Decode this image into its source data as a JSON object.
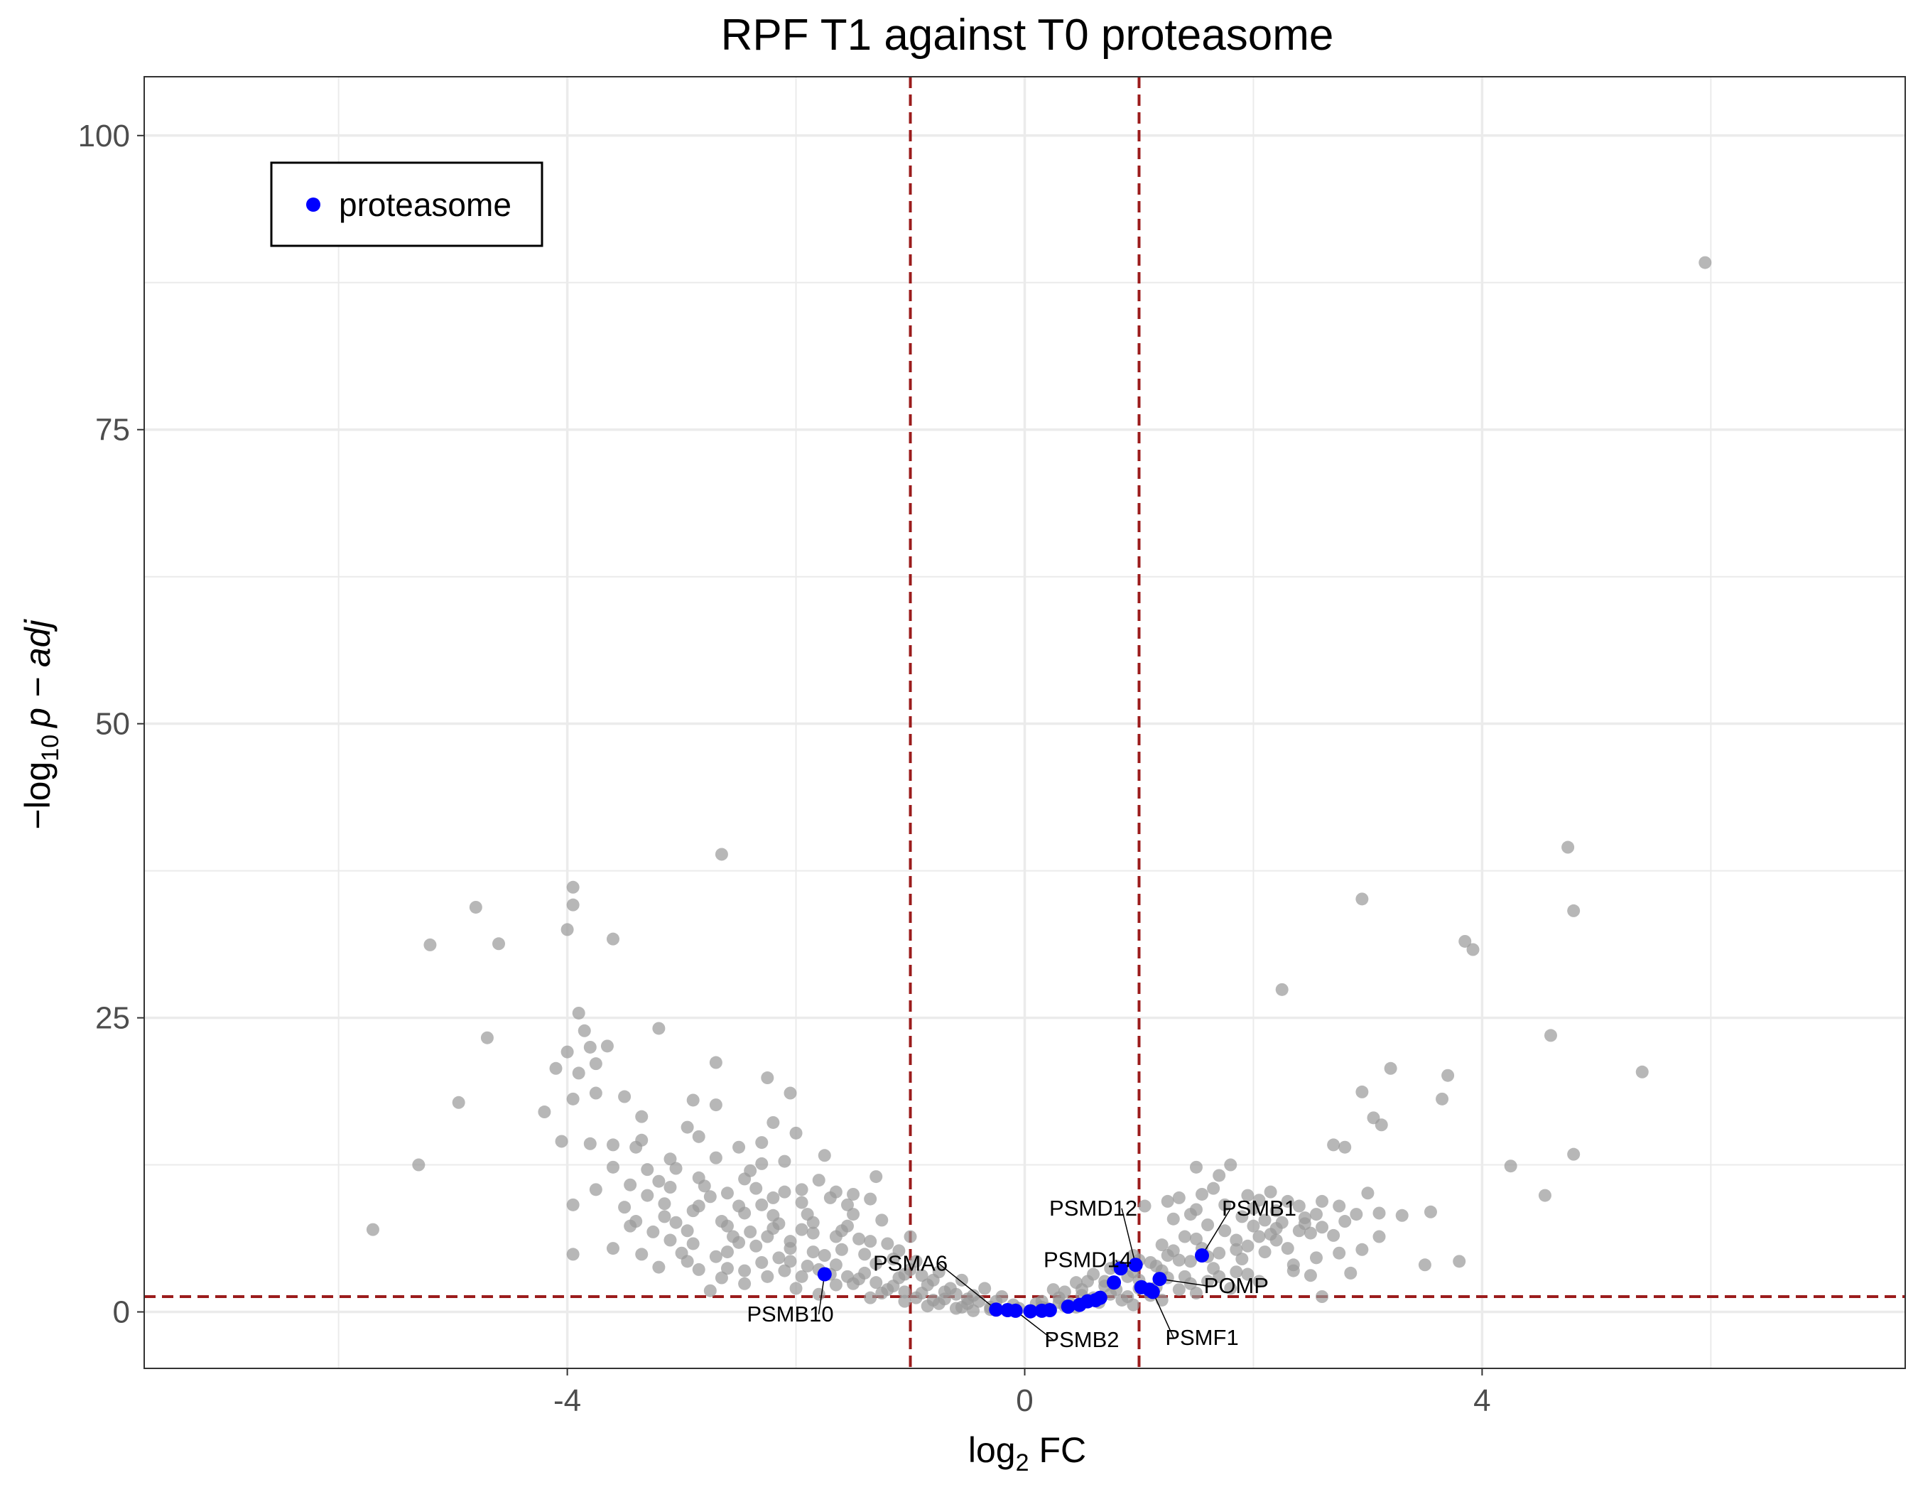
{
  "chart_data": {
    "type": "scatter",
    "title": "RPF T1 against T0 proteasome",
    "xlabel": {
      "main": "log",
      "sub": "2",
      "rest": " FC"
    },
    "ylabel": {
      "prefix": "−log",
      "sub": "10",
      "rest": "p − adj"
    },
    "xlim": [
      -7.7,
      7.7
    ],
    "ylim": [
      -4.8,
      105
    ],
    "x_ticks": [
      -4,
      0,
      4
    ],
    "x_tick_labels": [
      "-4",
      "0",
      "4"
    ],
    "y_ticks": [
      0,
      25,
      50,
      75,
      100
    ],
    "y_tick_labels": [
      "0",
      "25",
      "50",
      "75",
      "100"
    ],
    "grid": true,
    "legend": {
      "position": "top-left",
      "entries": [
        {
          "name": "proteasome",
          "color": "#0000ff"
        }
      ]
    },
    "thresholds": {
      "fc_lines": [
        -1,
        1
      ],
      "padj_line": 1.3,
      "color": "#9b1c1c"
    },
    "colors": {
      "background_points": "#999999",
      "highlight_points": "#0000ff"
    },
    "background_points": [
      [
        5.95,
        89.2
      ],
      [
        4.75,
        39.5
      ],
      [
        -2.65,
        38.9
      ],
      [
        -3.95,
        36.1
      ],
      [
        -3.95,
        34.6
      ],
      [
        -4.8,
        34.4
      ],
      [
        2.95,
        35.1
      ],
      [
        4.8,
        34.1
      ],
      [
        -4.0,
        32.5
      ],
      [
        -3.6,
        31.7
      ],
      [
        -5.2,
        31.2
      ],
      [
        -4.6,
        31.3
      ],
      [
        3.85,
        31.5
      ],
      [
        3.92,
        30.8
      ],
      [
        2.25,
        27.4
      ],
      [
        -3.9,
        25.4
      ],
      [
        -3.85,
        23.9
      ],
      [
        -3.8,
        22.5
      ],
      [
        -3.65,
        22.6
      ],
      [
        -4.7,
        23.3
      ],
      [
        -3.2,
        24.1
      ],
      [
        4.6,
        23.5
      ],
      [
        -4.0,
        22.1
      ],
      [
        -3.75,
        21.1
      ],
      [
        -2.7,
        21.2
      ],
      [
        -4.1,
        20.7
      ],
      [
        -3.9,
        20.3
      ],
      [
        5.4,
        20.4
      ],
      [
        3.7,
        20.1
      ],
      [
        3.2,
        20.7
      ],
      [
        -2.25,
        19.9
      ],
      [
        -3.75,
        18.6
      ],
      [
        -3.5,
        18.3
      ],
      [
        -3.95,
        18.1
      ],
      [
        -4.95,
        17.8
      ],
      [
        -2.05,
        18.6
      ],
      [
        2.95,
        18.7
      ],
      [
        3.65,
        18.1
      ],
      [
        -2.9,
        18.0
      ],
      [
        -2.7,
        17.6
      ],
      [
        -4.2,
        17.0
      ],
      [
        -3.35,
        16.6
      ],
      [
        3.05,
        16.5
      ],
      [
        3.12,
        15.9
      ],
      [
        -2.2,
        16.1
      ],
      [
        -2.95,
        15.7
      ],
      [
        -4.05,
        14.5
      ],
      [
        -3.6,
        14.2
      ],
      [
        -3.4,
        14.0
      ],
      [
        -2.5,
        14.0
      ],
      [
        2.7,
        14.2
      ],
      [
        2.8,
        14.0
      ],
      [
        -5.3,
        12.5
      ],
      [
        4.25,
        12.4
      ],
      [
        4.8,
        13.4
      ],
      [
        -3.1,
        13.0
      ],
      [
        -1.75,
        13.3
      ],
      [
        -3.3,
        12.1
      ],
      [
        -3.2,
        11.1
      ],
      [
        -2.4,
        12.0
      ],
      [
        -1.3,
        11.5
      ],
      [
        1.5,
        12.3
      ],
      [
        1.8,
        12.5
      ],
      [
        1.7,
        11.6
      ],
      [
        -3.45,
        10.8
      ],
      [
        -2.8,
        10.7
      ],
      [
        -2.1,
        10.2
      ],
      [
        -1.65,
        10.2
      ],
      [
        -1.5,
        10.0
      ],
      [
        -1.35,
        9.6
      ],
      [
        4.55,
        9.9
      ],
      [
        1.95,
        9.9
      ],
      [
        2.15,
        10.2
      ],
      [
        3.0,
        10.1
      ],
      [
        2.6,
        9.4
      ],
      [
        2.75,
        9.0
      ],
      [
        -3.95,
        9.1
      ],
      [
        -3.15,
        9.2
      ],
      [
        -2.85,
        9.0
      ],
      [
        -2.3,
        9.1
      ],
      [
        -1.95,
        9.3
      ],
      [
        1.05,
        9.0
      ],
      [
        1.25,
        9.4
      ],
      [
        1.35,
        9.7
      ],
      [
        1.55,
        10.0
      ],
      [
        3.3,
        8.2
      ],
      [
        3.55,
        8.5
      ],
      [
        3.1,
        8.4
      ],
      [
        2.45,
        8.0
      ],
      [
        2.1,
        7.8
      ],
      [
        -3.4,
        7.7
      ],
      [
        -3.05,
        7.6
      ],
      [
        -2.6,
        7.3
      ],
      [
        -2.2,
        7.1
      ],
      [
        -1.85,
        6.7
      ],
      [
        -1.45,
        6.2
      ],
      [
        -1.2,
        5.8
      ],
      [
        -5.7,
        7.0
      ],
      [
        -3.6,
        5.4
      ],
      [
        -3.95,
        4.9
      ],
      [
        -2.95,
        4.3
      ],
      [
        -2.6,
        3.7
      ],
      [
        -2.1,
        3.5
      ],
      [
        -1.7,
        3.2
      ],
      [
        -1.45,
        2.8
      ],
      [
        -1.15,
        2.2
      ],
      [
        -0.9,
        1.6
      ],
      [
        -0.7,
        1.1
      ],
      [
        -0.5,
        0.7
      ],
      [
        -0.3,
        0.4
      ],
      [
        -0.15,
        0.2
      ],
      [
        0.05,
        0.1
      ],
      [
        0.2,
        0.3
      ],
      [
        0.4,
        0.7
      ],
      [
        0.6,
        1.2
      ],
      [
        0.8,
        1.9
      ],
      [
        1.0,
        2.7
      ],
      [
        1.2,
        3.5
      ],
      [
        1.45,
        4.3
      ],
      [
        1.7,
        5.0
      ],
      [
        1.95,
        5.6
      ],
      [
        2.2,
        6.1
      ],
      [
        2.5,
        6.7
      ],
      [
        2.75,
        5.0
      ],
      [
        2.95,
        5.3
      ],
      [
        3.1,
        6.4
      ],
      [
        3.8,
        4.3
      ],
      [
        3.5,
        4.0
      ],
      [
        2.85,
        3.3
      ],
      [
        2.6,
        1.3
      ],
      [
        -2.75,
        1.8
      ],
      [
        -3.2,
        3.8
      ],
      [
        -3.35,
        4.9
      ],
      [
        -2.45,
        2.4
      ],
      [
        -2.0,
        2.0
      ],
      [
        -1.8,
        1.5
      ],
      [
        -1.6,
        5.3
      ],
      [
        -1.3,
        4.1
      ],
      [
        -1.05,
        3.2
      ],
      [
        -0.85,
        2.3
      ],
      [
        -0.6,
        1.5
      ],
      [
        -0.4,
        0.9
      ],
      [
        0.3,
        0.8
      ],
      [
        0.5,
        1.4
      ],
      [
        0.7,
        2.2
      ],
      [
        0.9,
        3.0
      ],
      [
        1.1,
        4.2
      ],
      [
        1.3,
        5.2
      ],
      [
        1.5,
        6.2
      ],
      [
        1.75,
        6.9
      ],
      [
        2.0,
        7.3
      ],
      [
        2.3,
        5.4
      ],
      [
        2.55,
        4.6
      ],
      [
        1.85,
        3.4
      ],
      [
        1.6,
        2.6
      ],
      [
        1.35,
        1.9
      ],
      [
        1.1,
        1.4
      ],
      [
        0.85,
        1.0
      ],
      [
        -1.25,
        1.6
      ],
      [
        -1.5,
        2.4
      ],
      [
        -1.9,
        3.9
      ],
      [
        -2.15,
        4.6
      ],
      [
        -2.35,
        5.6
      ],
      [
        -2.55,
        6.4
      ],
      [
        -2.05,
        6.0
      ],
      [
        -1.75,
        4.8
      ],
      [
        -1.55,
        7.3
      ],
      [
        -2.45,
        8.4
      ],
      [
        -2.75,
        9.8
      ],
      [
        -3.1,
        10.6
      ],
      [
        -3.75,
        10.4
      ],
      [
        -3.5,
        8.9
      ],
      [
        -3.25,
        6.8
      ],
      [
        -2.9,
        5.8
      ],
      [
        -3.05,
        12.2
      ],
      [
        -2.7,
        13.1
      ],
      [
        -2.35,
        10.5
      ],
      [
        -1.9,
        8.3
      ],
      [
        2.4,
        9.0
      ],
      [
        2.2,
        8.6
      ],
      [
        1.9,
        8.1
      ],
      [
        1.6,
        7.4
      ],
      [
        1.4,
        6.4
      ],
      [
        1.2,
        5.7
      ],
      [
        0.95,
        4.8
      ],
      [
        0.75,
        3.7
      ],
      [
        0.55,
        2.6
      ],
      [
        0.35,
        1.7
      ],
      [
        0.15,
        0.9
      ],
      [
        -0.1,
        0.6
      ],
      [
        -0.25,
        0.9
      ],
      [
        -0.45,
        1.4
      ],
      [
        -0.65,
        2.0
      ],
      [
        -0.8,
        2.7
      ],
      [
        -1.0,
        3.6
      ],
      [
        -1.15,
        4.5
      ],
      [
        -1.4,
        4.9
      ],
      [
        -1.65,
        6.4
      ],
      [
        -1.95,
        7.0
      ],
      [
        -2.2,
        8.2
      ],
      [
        -2.5,
        9.0
      ],
      [
        -2.85,
        11.4
      ],
      [
        -3.3,
        9.9
      ],
      [
        -3.6,
        12.3
      ],
      [
        -3.8,
        14.3
      ],
      [
        -3.35,
        14.6
      ],
      [
        -2.3,
        12.6
      ],
      [
        -2.1,
        12.8
      ],
      [
        -1.8,
        11.2
      ],
      [
        -1.55,
        9.1
      ],
      [
        -1.25,
        7.8
      ],
      [
        -1.0,
        6.4
      ],
      [
        1.3,
        7.9
      ],
      [
        1.5,
        8.7
      ],
      [
        1.75,
        9.1
      ],
      [
        2.0,
        8.8
      ],
      [
        2.3,
        9.4
      ],
      [
        2.55,
        8.3
      ],
      [
        2.8,
        7.7
      ],
      [
        2.7,
        6.5
      ],
      [
        2.4,
        6.9
      ],
      [
        2.15,
        6.6
      ],
      [
        1.85,
        6.1
      ],
      [
        1.55,
        5.4
      ],
      [
        1.25,
        4.8
      ],
      [
        1.0,
        4.4
      ],
      [
        0.8,
        3.9
      ],
      [
        0.6,
        3.2
      ],
      [
        0.45,
        2.5
      ],
      [
        0.25,
        1.9
      ],
      [
        -0.2,
        1.3
      ],
      [
        -0.35,
        2.0
      ],
      [
        -0.55,
        2.7
      ],
      [
        -0.75,
        3.4
      ],
      [
        -0.95,
        4.3
      ],
      [
        -1.1,
        5.2
      ],
      [
        -1.35,
        6.0
      ],
      [
        -1.6,
        6.9
      ],
      [
        -1.85,
        7.6
      ],
      [
        -2.15,
        7.5
      ],
      [
        -2.4,
        6.8
      ],
      [
        -2.65,
        7.7
      ],
      [
        -2.9,
        8.6
      ],
      [
        -3.15,
        8.1
      ],
      [
        -3.45,
        7.3
      ],
      [
        -2.6,
        5.1
      ],
      [
        -2.3,
        4.2
      ],
      [
        -1.95,
        3.0
      ],
      [
        -1.65,
        2.3
      ],
      [
        -1.35,
        1.2
      ],
      [
        -1.05,
        0.9
      ],
      [
        -0.85,
        0.5
      ],
      [
        -0.6,
        0.3
      ],
      [
        0.45,
        0.4
      ],
      [
        0.65,
        0.8
      ],
      [
        0.9,
        1.3
      ],
      [
        1.15,
        2.1
      ],
      [
        1.4,
        3.0
      ],
      [
        1.65,
        3.7
      ],
      [
        1.9,
        4.5
      ],
      [
        2.1,
        5.1
      ],
      [
        2.35,
        4.0
      ],
      [
        2.5,
        3.1
      ],
      [
        2.05,
        2.6
      ],
      [
        1.8,
        2.0
      ],
      [
        1.5,
        1.6
      ],
      [
        1.2,
        1.0
      ],
      [
        0.95,
        0.6
      ],
      [
        -0.45,
        0.1
      ],
      [
        -0.75,
        0.7
      ],
      [
        -0.95,
        1.2
      ],
      [
        -1.2,
        1.9
      ],
      [
        -1.4,
        3.3
      ],
      [
        -1.65,
        4.0
      ],
      [
        -1.85,
        5.1
      ],
      [
        -2.05,
        5.4
      ],
      [
        -2.25,
        6.4
      ],
      [
        -2.5,
        5.9
      ],
      [
        -2.7,
        4.7
      ],
      [
        -2.85,
        3.6
      ],
      [
        -3.0,
        5.0
      ],
      [
        -3.1,
        6.1
      ],
      [
        -2.95,
        6.9
      ],
      [
        -1.5,
        8.3
      ],
      [
        -1.7,
        9.7
      ],
      [
        -1.95,
        10.4
      ],
      [
        -2.2,
        9.7
      ],
      [
        -2.45,
        11.3
      ],
      [
        -2.6,
        10.1
      ],
      [
        -2.85,
        14.9
      ],
      [
        -2.3,
        14.4
      ],
      [
        -2.0,
        15.2
      ],
      [
        1.65,
        10.5
      ],
      [
        1.45,
        8.3
      ],
      [
        2.05,
        9.5
      ],
      [
        2.2,
        7.1
      ],
      [
        2.6,
        7.2
      ],
      [
        2.9,
        8.3
      ],
      [
        2.35,
        3.5
      ],
      [
        1.95,
        3.2
      ],
      [
        1.7,
        3.0
      ],
      [
        1.45,
        2.4
      ],
      [
        1.25,
        2.9
      ],
      [
        1.0,
        2.0
      ],
      [
        0.75,
        1.5
      ],
      [
        0.55,
        1.0
      ],
      [
        0.35,
        0.5
      ],
      [
        0.15,
        0.4
      ],
      [
        -0.05,
        0.3
      ],
      [
        -0.3,
        0.2
      ],
      [
        -0.55,
        0.4
      ],
      [
        -0.8,
        1.0
      ],
      [
        -1.05,
        1.7
      ],
      [
        -1.3,
        2.5
      ],
      [
        -1.55,
        3.0
      ],
      [
        -1.8,
        3.6
      ],
      [
        -2.05,
        4.3
      ],
      [
        -2.25,
        3.0
      ],
      [
        -2.45,
        3.5
      ],
      [
        -2.65,
        2.9
      ],
      [
        -1.1,
        2.9
      ],
      [
        -0.9,
        3.1
      ],
      [
        -0.7,
        1.7
      ],
      [
        -0.5,
        1.1
      ],
      [
        0.1,
        0.7
      ],
      [
        0.3,
        1.2
      ],
      [
        0.5,
        1.9
      ],
      [
        0.7,
        2.6
      ],
      [
        0.95,
        3.4
      ],
      [
        1.15,
        3.9
      ],
      [
        1.35,
        4.4
      ],
      [
        1.6,
        4.7
      ],
      [
        1.85,
        5.3
      ],
      [
        2.05,
        6.4
      ],
      [
        2.25,
        7.6
      ],
      [
        2.45,
        7.5
      ]
    ],
    "highlight_points": [
      {
        "x": -1.75,
        "y": 3.2,
        "label": "PSMB10"
      },
      {
        "x": -0.25,
        "y": 0.2,
        "label": "PSMA6"
      },
      {
        "x": -0.15,
        "y": 0.15,
        "label": ""
      },
      {
        "x": -0.08,
        "y": 0.1,
        "label": "PSMB2"
      },
      {
        "x": 0.05,
        "y": 0.05,
        "label": ""
      },
      {
        "x": 0.15,
        "y": 0.1,
        "label": ""
      },
      {
        "x": 0.22,
        "y": 0.15,
        "label": ""
      },
      {
        "x": 0.38,
        "y": 0.45,
        "label": ""
      },
      {
        "x": 0.48,
        "y": 0.6,
        "label": ""
      },
      {
        "x": 0.55,
        "y": 0.9,
        "label": ""
      },
      {
        "x": 0.62,
        "y": 1.0,
        "label": ""
      },
      {
        "x": 0.66,
        "y": 1.2,
        "label": ""
      },
      {
        "x": 0.78,
        "y": 2.5,
        "label": ""
      },
      {
        "x": 0.84,
        "y": 3.7,
        "label": "PSMD14"
      },
      {
        "x": 0.97,
        "y": 4.0,
        "label": "PSMD12"
      },
      {
        "x": 1.02,
        "y": 2.1,
        "label": ""
      },
      {
        "x": 1.09,
        "y": 1.9,
        "label": ""
      },
      {
        "x": 1.12,
        "y": 1.7,
        "label": "PSMF1"
      },
      {
        "x": 1.18,
        "y": 2.8,
        "label": "POMP"
      },
      {
        "x": 1.55,
        "y": 4.8,
        "label": "PSMB1"
      }
    ],
    "annotations": [
      {
        "text": "PSMB10",
        "x": -2.05,
        "y": -0.8,
        "px": -1.75,
        "py": 3.2
      },
      {
        "text": "PSMA6",
        "x": -1.0,
        "y": 3.5,
        "px": -0.25,
        "py": 0.2
      },
      {
        "text": "PSMB2",
        "x": 0.5,
        "y": -3.0,
        "px": -0.08,
        "py": 0.1
      },
      {
        "text": "PSMD14",
        "x": 0.55,
        "y": 3.8,
        "px": 0.84,
        "py": 3.7
      },
      {
        "text": "PSMD12",
        "x": 0.6,
        "y": 8.2,
        "px": 0.97,
        "py": 4.0
      },
      {
        "text": "PSMB1",
        "x": 2.05,
        "y": 8.2,
        "px": 1.55,
        "py": 4.8
      },
      {
        "text": "POMP",
        "x": 1.85,
        "y": 1.6,
        "px": 1.18,
        "py": 2.8
      },
      {
        "text": "PSMF1",
        "x": 1.55,
        "y": -2.8,
        "px": 1.12,
        "py": 1.7
      }
    ]
  }
}
